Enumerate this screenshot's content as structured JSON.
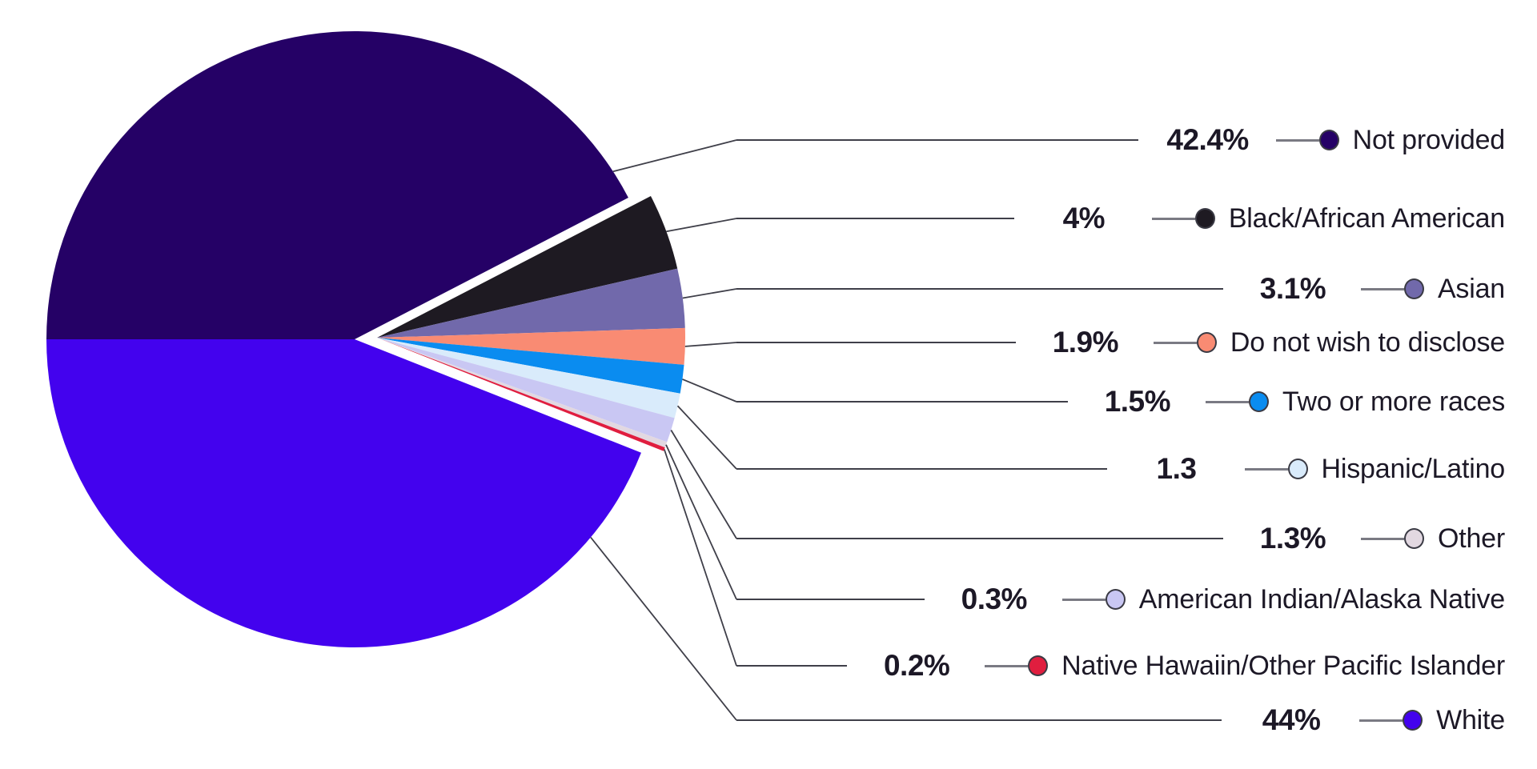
{
  "chart_data": {
    "type": "pie",
    "title": "",
    "legend_position": "right",
    "direction": "clockwise",
    "start_angle_deg": 180,
    "background_color": "#FFFFFF",
    "text_color": "#1C1826",
    "leader_line_color": "#3F3F49",
    "connector_line_color": "#7A7A83",
    "slices": [
      {
        "label": "Not provided",
        "value": 42.4,
        "value_label": "42.4%",
        "color": "#250166",
        "dot_color": "#250166"
      },
      {
        "label": "Black/African American",
        "value": 4,
        "value_label": "4%",
        "color": "#1E1A22",
        "dot_color": "#1E1A22"
      },
      {
        "label": "Asian",
        "value": 3.1,
        "value_label": "3.1%",
        "color": "#7169AB",
        "dot_color": "#7169AB"
      },
      {
        "label": "Do not wish to disclose",
        "value": 1.9,
        "value_label": "1.9%",
        "color": "#F98B73",
        "dot_color": "#F98B73"
      },
      {
        "label": "Two or more races",
        "value": 1.5,
        "value_label": "1.5%",
        "color": "#0A8CF0",
        "dot_color": "#0A8CF0"
      },
      {
        "label": "Hispanic/Latino",
        "value": 1.3,
        "value_label": "1.3",
        "color": "#D9EBFB",
        "dot_color": "#D9EBFB"
      },
      {
        "label": "Other",
        "value": 1.3,
        "value_label": "1.3%",
        "color": "#C9C7F3",
        "dot_color": "#E2D8E1"
      },
      {
        "label": "American Indian/Alaska Native",
        "value": 0.3,
        "value_label": "0.3%",
        "color": "#E2D8E1",
        "dot_color": "#C9C7F3"
      },
      {
        "label": "Native Hawaiin/Other Pacific Islander",
        "value": 0.2,
        "value_label": "0.2%",
        "color": "#E01E3F",
        "dot_color": "#E01E3F"
      },
      {
        "label": "White",
        "value": 44,
        "value_label": "44%",
        "color": "#4302EE",
        "dot_color": "#4302EE"
      }
    ]
  }
}
